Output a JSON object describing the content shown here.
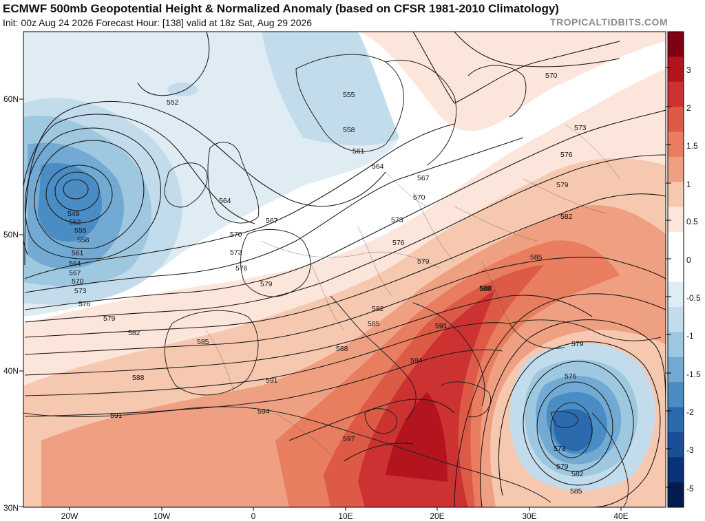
{
  "header": {
    "title": "ECMWF 500mb Geopotential Height & Normalized Anomaly (based on CFSR 1981-2010 Climatology)",
    "subtitle": "Init: 00z Aug 24 2026   Forecast Hour: [138]   valid at 18z Sat, Aug 29 2026",
    "credit": "TROPICALTIDBITS.COM"
  },
  "map": {
    "lat_labels": [
      "60N",
      "50N",
      "40N",
      "30N"
    ],
    "lon_labels": [
      "20W",
      "10W",
      "0",
      "10E",
      "20E",
      "30E",
      "40E"
    ]
  },
  "contour_labels": [
    {
      "text": "552"
    },
    {
      "text": "549"
    },
    {
      "text": "552"
    },
    {
      "text": "555"
    },
    {
      "text": "558"
    },
    {
      "text": "561"
    },
    {
      "text": "564"
    },
    {
      "text": "567"
    },
    {
      "text": "570"
    },
    {
      "text": "573"
    },
    {
      "text": "576"
    },
    {
      "text": "579"
    },
    {
      "text": "582"
    },
    {
      "text": "588"
    },
    {
      "text": "591"
    },
    {
      "text": "555"
    },
    {
      "text": "558"
    },
    {
      "text": "561"
    },
    {
      "text": "564"
    },
    {
      "text": "567"
    },
    {
      "text": "570"
    },
    {
      "text": "564"
    },
    {
      "text": "567"
    },
    {
      "text": "570"
    },
    {
      "text": "573"
    },
    {
      "text": "576"
    },
    {
      "text": "579"
    },
    {
      "text": "573"
    },
    {
      "text": "576"
    },
    {
      "text": "579"
    },
    {
      "text": "582"
    },
    {
      "text": "585"
    },
    {
      "text": "588"
    },
    {
      "text": "591"
    },
    {
      "text": "585"
    },
    {
      "text": "588"
    },
    {
      "text": "591"
    },
    {
      "text": "594"
    },
    {
      "text": "597"
    },
    {
      "text": "594"
    },
    {
      "text": "570"
    },
    {
      "text": "573"
    },
    {
      "text": "576"
    },
    {
      "text": "579"
    },
    {
      "text": "582"
    },
    {
      "text": "585"
    },
    {
      "text": "588"
    },
    {
      "text": "591"
    },
    {
      "text": "579"
    },
    {
      "text": "576"
    },
    {
      "text": "573"
    },
    {
      "text": "579"
    },
    {
      "text": "582"
    },
    {
      "text": "585"
    }
  ],
  "colorbar": {
    "labels": [
      "3",
      "2",
      "1.5",
      "1",
      "0.5",
      "0",
      "-0.5",
      "-1",
      "-1.5",
      "-2",
      "-3",
      "-5"
    ],
    "colors": [
      "#800014",
      "#b4141e",
      "#cd3232",
      "#dc5a46",
      "#e87d5f",
      "#f0a082",
      "#f7c8b0",
      "#fce6dc",
      "#ffffff",
      "#ffffff",
      "#e0ecf4",
      "#c2dcec",
      "#9ec8e0",
      "#72aad3",
      "#4a8cc4",
      "#2a6aad",
      "#184f96",
      "#0a3278",
      "#051a50"
    ]
  }
}
